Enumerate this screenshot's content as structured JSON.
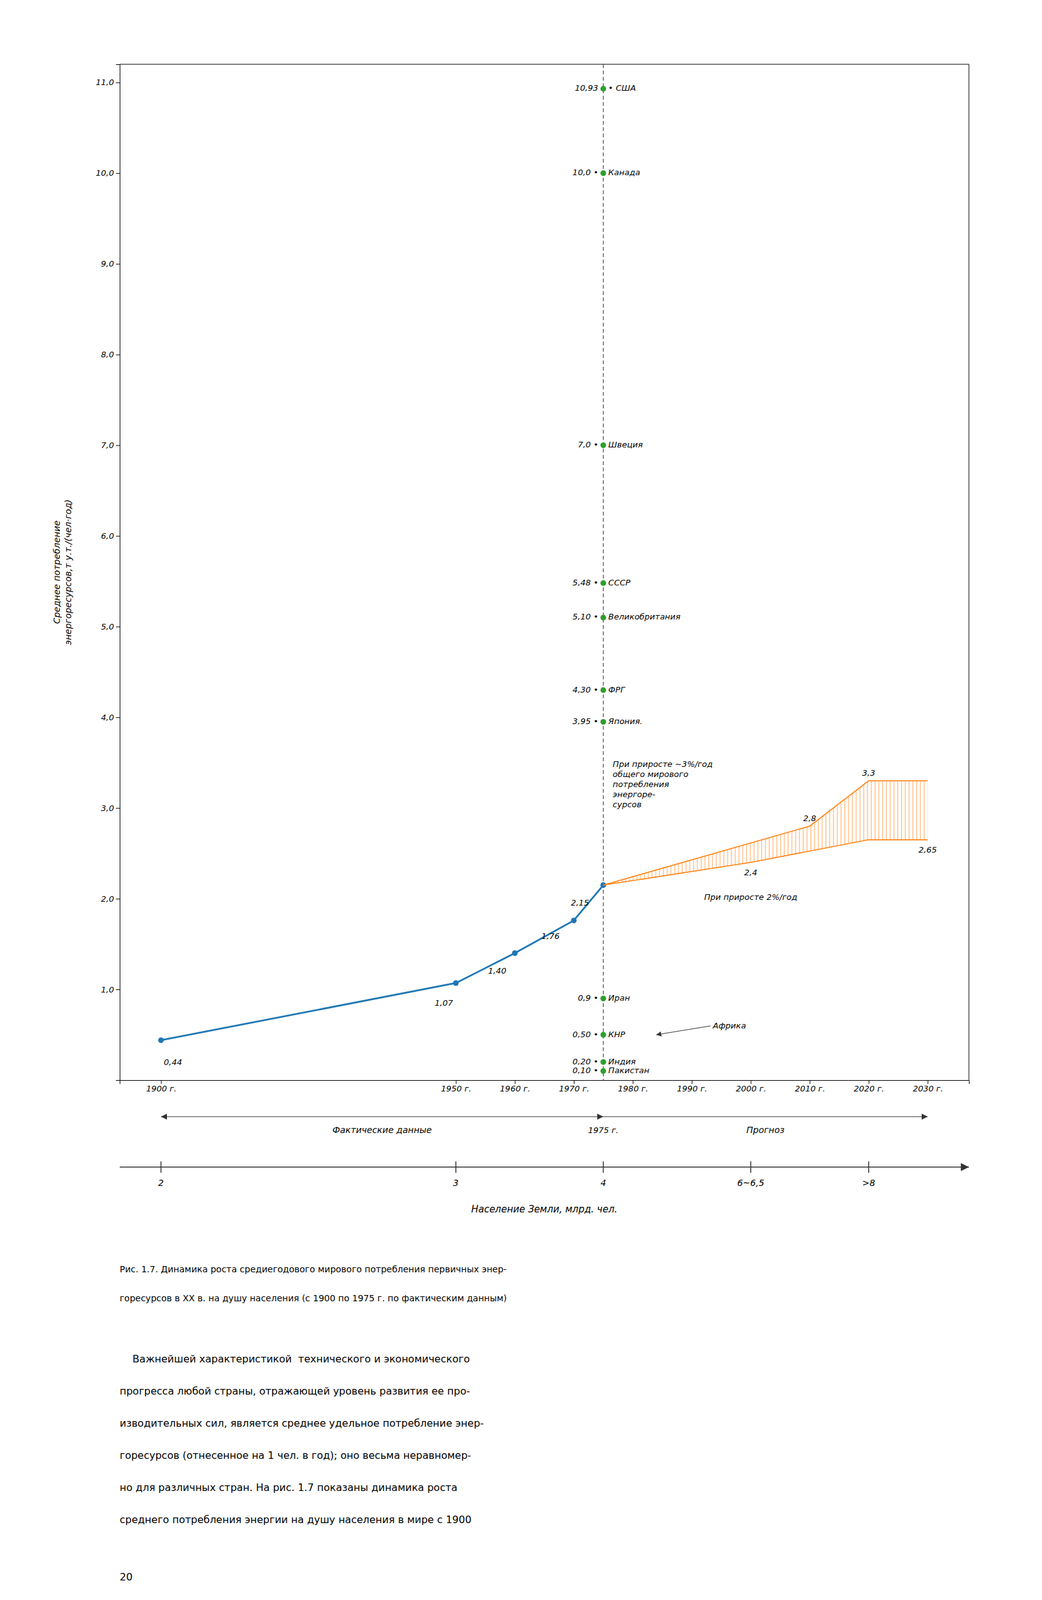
{
  "chart_data": {
    "type": "line",
    "xlim": [
      1893,
      2037
    ],
    "ylim": [
      0.0,
      11.2
    ],
    "xticks": [
      {
        "value": 1900,
        "label": "1900 г."
      },
      {
        "value": 1950,
        "label": "1950 г."
      },
      {
        "value": 1960,
        "label": "1960 г."
      },
      {
        "value": 1970,
        "label": "1970 г."
      },
      {
        "value": 1980,
        "label": "1980 г."
      },
      {
        "value": 1990,
        "label": "1990 г."
      },
      {
        "value": 2000,
        "label": "2000 г."
      },
      {
        "value": 2010,
        "label": "2010 г."
      },
      {
        "value": 2020,
        "label": "2020 г."
      },
      {
        "value": 2030,
        "label": "2030 г."
      }
    ],
    "yticks": [
      {
        "value": 1.0,
        "label": "1,0"
      },
      {
        "value": 2.0,
        "label": "2,0"
      },
      {
        "value": 3.0,
        "label": "3,0"
      },
      {
        "value": 4.0,
        "label": "4,0"
      },
      {
        "value": 5.0,
        "label": "5,0"
      },
      {
        "value": 6.0,
        "label": "6,0"
      },
      {
        "value": 7.0,
        "label": "7,0"
      },
      {
        "value": 8.0,
        "label": "8,0"
      },
      {
        "value": 9.0,
        "label": "9,0"
      },
      {
        "value": 10.0,
        "label": "10,0"
      },
      {
        "value": 11.0,
        "label": "11,0"
      }
    ],
    "y_label": "Среднее потребление\nэнергоресурсов,т у.т./(чел·год)",
    "grid": false,
    "series": [
      {
        "type": "line",
        "marker": "circle",
        "line_style": "solid",
        "x": [
          1900,
          1950,
          1960,
          1970,
          1975
        ],
        "values": [
          0.44,
          1.07,
          1.4,
          1.76,
          2.15
        ],
        "value_labels": [
          "0,44",
          "1,07",
          "1,40",
          "1,76",
          "2,15"
        ]
      },
      {
        "type": "band",
        "upper": {
          "x": [
            1975,
            2010,
            2020,
            2030
          ],
          "values": [
            2.15,
            2.8,
            3.3,
            3.3
          ],
          "value_labels": [
            null,
            "2,8",
            "3,3",
            null
          ],
          "annotation": "При приросте ~3%/год\nобщего мирового\nпотребления\nэнергоре-\nсурсов"
        },
        "lower": {
          "x": [
            1975,
            2000,
            2020,
            2030
          ],
          "values": [
            2.15,
            2.4,
            2.65,
            2.65
          ],
          "value_labels": [
            null,
            "2,4",
            null,
            "2,65"
          ],
          "annotation": "При приросте 2%/год"
        }
      },
      {
        "type": "scatter",
        "marker": "circle",
        "x": [
          1975,
          1975,
          1975,
          1975,
          1975,
          1975,
          1975,
          1975,
          1975,
          1975,
          1975
        ],
        "values": [
          10.93,
          10.0,
          7.0,
          5.48,
          5.1,
          4.3,
          3.95,
          0.9,
          0.5,
          0.2,
          0.1
        ],
        "value_labels": [
          "10,93",
          "10,0 •",
          "7,0 •",
          "5,48 •",
          "5,10 •",
          "4,30 •",
          "3,95 •",
          "0,9 •",
          "0,50 •",
          "0,20 •",
          "0,10 •"
        ],
        "point_labels": [
          "• США",
          "Канада",
          "Швеция",
          "СССР",
          "Великобритания",
          "ФРГ",
          "Япония.",
          "Иран",
          "КНР",
          "Индия",
          "Пакистан"
        ]
      }
    ],
    "annotations": [
      {
        "text": "Африка",
        "y": 0.5
      }
    ],
    "vline": {
      "value": 1975,
      "label": "1975 г.",
      "line_style": "dashed"
    },
    "periods": [
      {
        "label": "Фактические данные",
        "start": 1900,
        "end": 1975
      },
      {
        "label": "Прогноз",
        "start": 1975,
        "end": 2030
      }
    ],
    "population_axis": {
      "title": "Население Земли, млрд. чел.",
      "ticks": [
        {
          "value": 1900,
          "label": "2"
        },
        {
          "value": 1950,
          "label": "3"
        },
        {
          "value": 1975,
          "label": "4"
        },
        {
          "value": 2000,
          "label": "6~6,5"
        },
        {
          "value": 2020,
          "label": ">8"
        }
      ]
    }
  },
  "caption_lines": [
    "Рис. 1.7. Динамика роста средиегодового мирового потребления первичных энер-",
    "горесурсов в ХХ в. на душу населения (с 1900 по 1975 г. по фактическим данным)"
  ],
  "body_text_lines": [
    "    Важнейшей характеристикой  технического и экономического",
    "прогресса любой страны, отражающей уровень развития ее про-",
    "изводительных сил, является среднее удельное потребление энер-",
    "горесурсов (отнесенное на 1 чел. в год); оно весьма неравномер-",
    "но для различных стран. На рис. 1.7 показаны динамика роста",
    "среднего потребления энергии на душу населения в мире с 1900"
  ],
  "page_number": "20"
}
